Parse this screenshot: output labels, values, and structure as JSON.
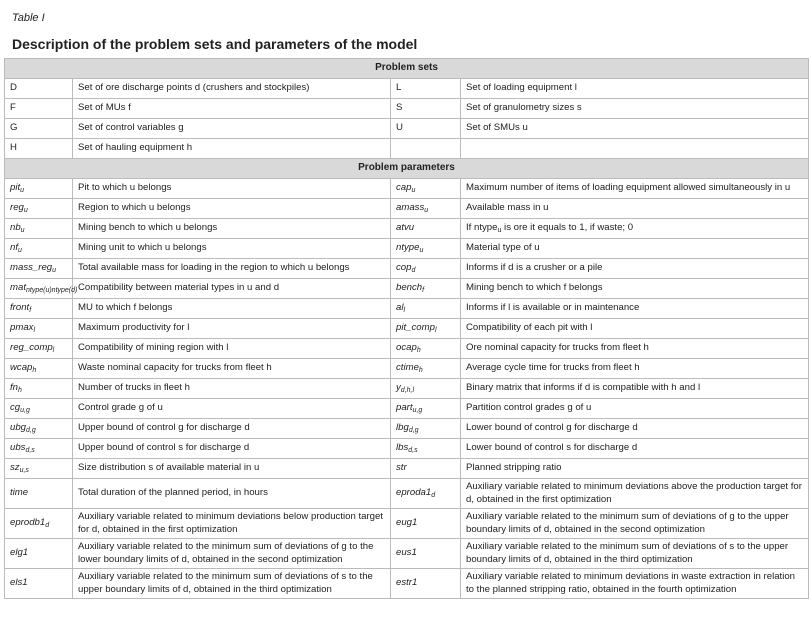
{
  "header": {
    "label": "Table I",
    "title": "Description of the problem sets and parameters of the model"
  },
  "table": {
    "sets_heading": "Problem sets",
    "sets": [
      [
        "D",
        "Set of ore discharge points d (crushers and stockpiles)",
        "L",
        "Set of loading equipment l"
      ],
      [
        "F",
        "Set of MUs f",
        "S",
        "Set of granulometry sizes s"
      ],
      [
        "G",
        "Set of control variables g",
        "U",
        "Set of SMUs u"
      ],
      [
        "H",
        "Set of hauling equipment h"
      ]
    ],
    "params_heading": "Problem parameters",
    "params": [
      [
        {
          "base": "pit",
          "sub": "u"
        },
        "Pit to which u belongs",
        {
          "base": "cap",
          "sub": "u"
        },
        "Maximum number of items of loading equipment allowed simultaneously in u"
      ],
      [
        {
          "base": "reg",
          "sub": "u"
        },
        "Region to which u belongs",
        {
          "base": "amass",
          "sub": "u"
        },
        "Available mass in u"
      ],
      [
        {
          "base": "nb",
          "sub": "u"
        },
        "Mining bench to which u belongs",
        "atvu",
        [
          "If ",
          {
            "base": "ntype",
            "sub": "u"
          },
          " is ore it equals to 1, if waste; 0"
        ]
      ],
      [
        {
          "base": "nf",
          "sub": "u"
        },
        "Mining unit to which u belongs",
        {
          "base": "ntype",
          "sub": "u"
        },
        "Material type of u"
      ],
      [
        {
          "base": "mass_reg",
          "sub": "u"
        },
        "Total available mass for loading in the region to which u belongs",
        {
          "base": "cop",
          "sub": "d"
        },
        "Informs if d is a crusher or a pile"
      ],
      [
        {
          "base": "mat",
          "sub": "ntype(u)ntype(d)"
        },
        "Compatibility between material types in u and d",
        {
          "base": "bench",
          "sub": "f"
        },
        "Mining bench to which f belongs"
      ],
      [
        {
          "base": "front",
          "sub": "f"
        },
        "MU to which f belongs",
        {
          "base": "al",
          "sub": "l"
        },
        "Informs if l is available or in maintenance"
      ],
      [
        {
          "base": "pmax",
          "sub": "l"
        },
        "Maximum productivity for l",
        {
          "base": "pit_comp",
          "sub": "l"
        },
        "Compatibility of each pit with l"
      ],
      [
        {
          "base": "reg_comp",
          "sub": "l"
        },
        "Compatibility of mining region with l",
        {
          "base": "ocap",
          "sub": "h"
        },
        "Ore nominal capacity for trucks from fleet h"
      ],
      [
        {
          "base": "wcap",
          "sub": "h"
        },
        "Waste nominal capacity for trucks from fleet h",
        {
          "base": "ctime",
          "sub": "h"
        },
        "Average cycle time for trucks from fleet h"
      ],
      [
        {
          "base": "fn",
          "sub": "h"
        },
        "Number of trucks in fleet h",
        {
          "base": "y",
          "sub": "d,h,l"
        },
        "Binary matrix that informs if d is compatible with h and l"
      ],
      [
        {
          "base": "cg",
          "sub": "u,g"
        },
        "Control grade g of u",
        {
          "base": "part",
          "sub": "u,g"
        },
        "Partition control grades g of u"
      ],
      [
        {
          "base": "ubg",
          "sub": "d,g"
        },
        "Upper bound of control g for discharge d",
        {
          "base": "lbg",
          "sub": "d,g"
        },
        "Lower bound of control g for discharge d"
      ],
      [
        {
          "base": "ubs",
          "sub": "d,s"
        },
        "Upper bound of control s for discharge d",
        {
          "base": "lbs",
          "sub": "d,s"
        },
        "Lower bound of control s for discharge d"
      ],
      [
        {
          "base": "sz",
          "sub": "u,s"
        },
        "Size distribution s of available material in u",
        "str",
        "Planned stripping ratio"
      ],
      [
        "time",
        "Total duration of the planned period, in hours",
        {
          "base": "eproda1",
          "sub": "d"
        },
        "Auxiliary variable related to minimum deviations above the production target for d, obtained in the first optimization"
      ],
      [
        {
          "base": "eprodb1",
          "sub": "d"
        },
        "Auxiliary variable related to minimum deviations below production target for d, obtained in the first optimization",
        "eug1",
        "Auxiliary variable related to the minimum sum of deviations of g to the upper boundary limits of d, obtained in the second optimization"
      ],
      [
        "elg1",
        "Auxiliary variable related to the minimum sum of deviations of g to the lower boundary limits of d, obtained in the second optimization",
        "eus1",
        "Auxiliary variable related to the minimum sum of deviations of s to the upper boundary limits of d, obtained in the third optimization"
      ],
      [
        "els1",
        "Auxiliary variable related to the minimum sum of deviations of s to the upper boundary limits of d, obtained in the third optimization",
        "estr1",
        "Auxiliary variable related to minimum deviations in waste extraction in relation to the planned stripping ratio, obtained in the fourth optimization"
      ]
    ]
  }
}
